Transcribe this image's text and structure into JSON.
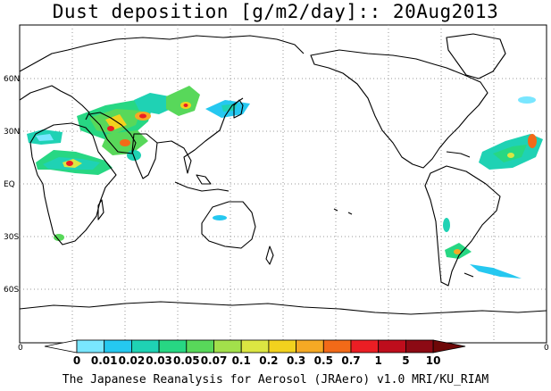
{
  "title": "Dust deposition [g/m2/day]:: 20Aug2013",
  "lat_labels": [
    "60N",
    "30N",
    "EQ",
    "30S",
    "60S"
  ],
  "colorbar": {
    "edge_left": "0",
    "edge_right": "0",
    "labels": [
      "0",
      "0.01",
      "0.02",
      "0.03",
      "0.05",
      "0.07",
      "0.1",
      "0.2",
      "0.3",
      "0.5",
      "0.7",
      "1",
      "5",
      "10"
    ],
    "colors": [
      "#ffffff",
      "#79e6ff",
      "#25c8f0",
      "#1fd2b4",
      "#27d783",
      "#58d85a",
      "#a2e04b",
      "#dce642",
      "#f2d21e",
      "#f5a924",
      "#f26a18",
      "#eb1e24",
      "#be0d1c",
      "#8c0a14",
      "#6e0808"
    ]
  },
  "footer": "The Japanese Reanalysis for Aerosol (JRAero) v1.0 MRI/KU_RIAM"
}
